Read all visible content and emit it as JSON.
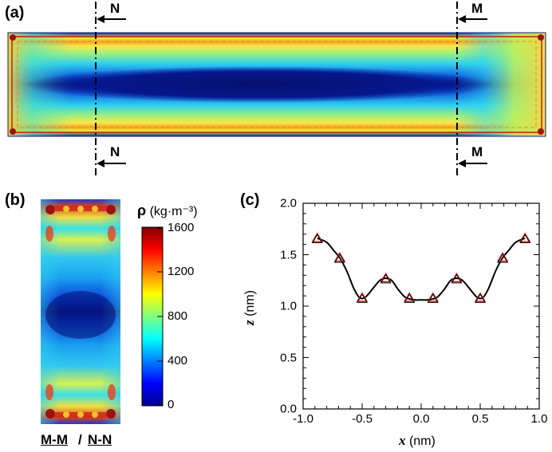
{
  "panels": {
    "a": "(a)",
    "b": "(b)",
    "c": "(c)"
  },
  "section_labels": {
    "n": "N",
    "m": "M"
  },
  "panel_b": {
    "caption_left": "M-M",
    "separator": "/",
    "caption_right": "N-N"
  },
  "colorbar": {
    "symbol": "ρ",
    "unit": "(kg·m⁻³)",
    "ticks": [
      "1600",
      "1200",
      "800",
      "400",
      "0"
    ]
  },
  "chart_data": {
    "type": "line",
    "xlabel_var": "x",
    "xlabel_unit": "(nm)",
    "ylabel_var": "z",
    "ylabel_unit": "(nm)",
    "xlim": [
      -1.0,
      1.0
    ],
    "ylim": [
      0.0,
      2.0
    ],
    "xticks": [
      "-1.0",
      "-0.5",
      "0.0",
      "0.5",
      "1.0"
    ],
    "yticks": [
      "0.0",
      "0.5",
      "1.0",
      "1.5",
      "2.0"
    ],
    "series": [
      {
        "name": "markers",
        "x": [
          -0.88,
          -0.69,
          -0.5,
          -0.3,
          -0.1,
          0.1,
          0.3,
          0.5,
          0.69,
          0.88
        ],
        "y": [
          1.66,
          1.47,
          1.08,
          1.27,
          1.08,
          1.08,
          1.27,
          1.08,
          1.47,
          1.66
        ]
      },
      {
        "name": "fit",
        "x": [
          -0.88,
          -0.8,
          -0.74,
          -0.69,
          -0.63,
          -0.57,
          -0.52,
          -0.47,
          -0.41,
          -0.35,
          -0.3,
          -0.25,
          -0.2,
          -0.14,
          -0.1,
          -0.05,
          0.0,
          0.05,
          0.1,
          0.14,
          0.2,
          0.25,
          0.3,
          0.35,
          0.41,
          0.47,
          0.52,
          0.57,
          0.63,
          0.69,
          0.74,
          0.8,
          0.88
        ],
        "y": [
          1.66,
          1.62,
          1.54,
          1.47,
          1.34,
          1.17,
          1.08,
          1.09,
          1.17,
          1.25,
          1.27,
          1.25,
          1.17,
          1.09,
          1.07,
          1.06,
          1.06,
          1.06,
          1.07,
          1.09,
          1.17,
          1.25,
          1.27,
          1.25,
          1.17,
          1.09,
          1.08,
          1.17,
          1.34,
          1.47,
          1.54,
          1.62,
          1.66
        ]
      }
    ]
  }
}
